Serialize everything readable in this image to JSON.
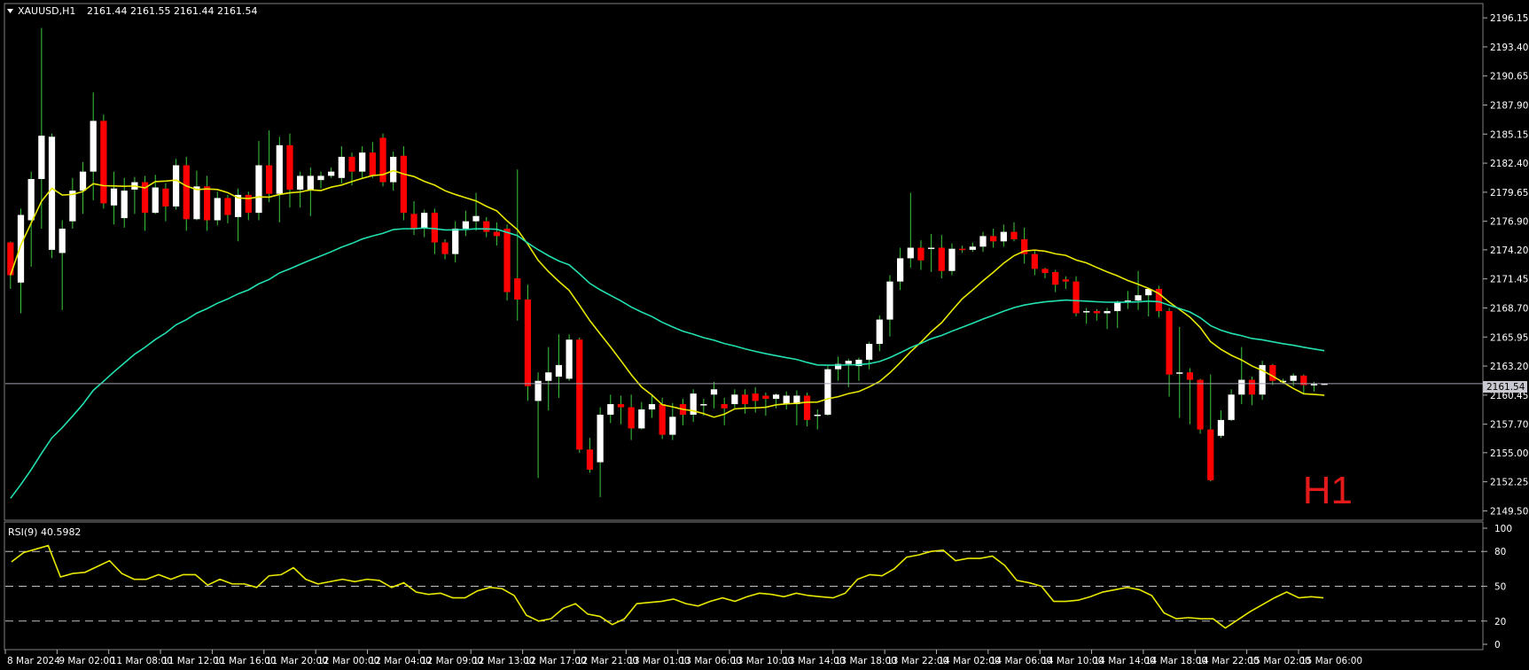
{
  "header": {
    "symbol_timeframe": "XAUUSD,H1",
    "ohlc_text": "2161.44 2161.55 2161.44 2161.54"
  },
  "watermark": "H1",
  "current_price_label": "2161.54",
  "rsi_label": "RSI(9) 40.5982",
  "colors": {
    "background": "#000000",
    "bull": "#ffffff",
    "bear": "#ff0000",
    "ma_fast": "#e8e800",
    "ma_slow": "#22e0b0",
    "rsi_line": "#e8e800",
    "price_line": "#a0a0b0"
  },
  "chart_data": [
    {
      "type": "candlestick",
      "title": "XAUUSD,H1",
      "y_ticks": [
        "2196.15",
        "2193.40",
        "2190.65",
        "2187.90",
        "2185.15",
        "2182.40",
        "2179.65",
        "2176.90",
        "2174.20",
        "2171.45",
        "2168.70",
        "2165.95",
        "2163.20",
        "2160.45",
        "2157.70",
        "2155.00",
        "2152.25",
        "2149.50"
      ],
      "ylim": [
        2149.2,
        2197.0
      ],
      "x_ticks": [
        "8 Mar 2024",
        "9 Mar 02:00",
        "11 Mar 08:00",
        "11 Mar 12:00",
        "11 Mar 16:00",
        "11 Mar 20:00",
        "12 Mar 00:00",
        "12 Mar 04:00",
        "12 Mar 09:00",
        "12 Mar 13:00",
        "12 Mar 17:00",
        "12 Mar 21:00",
        "13 Mar 01:00",
        "13 Mar 06:00",
        "13 Mar 10:00",
        "13 Mar 14:00",
        "13 Mar 18:00",
        "13 Mar 22:00",
        "14 Mar 02:00",
        "14 Mar 06:00",
        "14 Mar 10:00",
        "14 Mar 14:00",
        "14 Mar 18:00",
        "14 Mar 22:00",
        "15 Mar 02:00",
        "15 Mar 06:00"
      ],
      "x_tick_index": [
        0,
        5,
        10,
        15,
        20,
        25,
        30,
        35,
        40,
        45,
        50,
        55,
        60,
        65,
        70,
        75,
        80,
        85,
        90,
        95,
        100,
        105,
        110,
        115,
        120,
        125
      ],
      "last_price": 2161.54,
      "candles": [
        [
          2174.9,
          2171.8,
          2175.0,
          2170.5
        ],
        [
          2171.1,
          2177.5,
          2178.1,
          2168.2
        ],
        [
          2177.0,
          2180.9,
          2181.6,
          2172.6
        ],
        [
          2180.9,
          2185.0,
          2195.2,
          2176.2
        ],
        [
          2174.2,
          2184.9,
          2185.2,
          2173.4
        ],
        [
          2173.9,
          2176.2,
          2177.0,
          2168.5
        ],
        [
          2176.9,
          2179.8,
          2181.0,
          2176.2
        ],
        [
          2179.8,
          2181.6,
          2182.5,
          2177.6
        ],
        [
          2181.6,
          2186.4,
          2189.1,
          2178.9
        ],
        [
          2186.4,
          2178.6,
          2187.0,
          2178.1
        ],
        [
          2178.4,
          2180.0,
          2181.6,
          2176.6
        ],
        [
          2177.2,
          2179.8,
          2181.0,
          2176.3
        ],
        [
          2179.9,
          2180.6,
          2181.1,
          2177.6
        ],
        [
          2180.6,
          2177.7,
          2181.2,
          2176.0
        ],
        [
          2177.7,
          2180.1,
          2181.3,
          2177.6
        ],
        [
          2180.0,
          2178.3,
          2180.5,
          2176.9
        ],
        [
          2178.3,
          2182.2,
          2182.8,
          2178.0
        ],
        [
          2182.2,
          2177.1,
          2183.0,
          2176.0
        ],
        [
          2177.1,
          2180.2,
          2181.7,
          2177.0
        ],
        [
          2180.2,
          2177.0,
          2181.2,
          2176.0
        ],
        [
          2177.0,
          2179.1,
          2179.7,
          2176.5
        ],
        [
          2179.1,
          2177.5,
          2179.4,
          2176.7
        ],
        [
          2177.3,
          2179.4,
          2180.0,
          2175.0
        ],
        [
          2179.4,
          2177.7,
          2179.7,
          2177.0
        ],
        [
          2177.7,
          2182.2,
          2184.5,
          2177.0
        ],
        [
          2182.2,
          2179.5,
          2185.5,
          2178.7
        ],
        [
          2179.5,
          2184.1,
          2184.9,
          2176.8
        ],
        [
          2184.1,
          2179.9,
          2185.2,
          2178.2
        ],
        [
          2179.9,
          2181.2,
          2181.6,
          2178.2
        ],
        [
          2179.9,
          2181.2,
          2182.0,
          2177.4
        ],
        [
          2180.8,
          2181.2,
          2181.6,
          2180.0
        ],
        [
          2181.2,
          2181.6,
          2182.0,
          2181.0
        ],
        [
          2181.0,
          2183.0,
          2184.0,
          2180.5
        ],
        [
          2183.0,
          2181.6,
          2183.4,
          2180.3
        ],
        [
          2181.6,
          2183.4,
          2184.0,
          2181.0
        ],
        [
          2183.4,
          2181.2,
          2184.4,
          2181.0
        ],
        [
          2184.8,
          2180.6,
          2185.2,
          2180.2
        ],
        [
          2180.6,
          2183.0,
          2183.5,
          2179.8
        ],
        [
          2183.1,
          2177.7,
          2184.0,
          2177.0
        ],
        [
          2177.6,
          2176.2,
          2178.8,
          2175.6
        ],
        [
          2176.2,
          2177.7,
          2178.0,
          2175.4
        ],
        [
          2177.7,
          2174.9,
          2178.1,
          2173.8
        ],
        [
          2174.9,
          2173.8,
          2175.2,
          2173.3
        ],
        [
          2173.8,
          2176.2,
          2176.9,
          2173.0
        ],
        [
          2176.2,
          2176.9,
          2177.9,
          2175.5
        ],
        [
          2176.9,
          2177.4,
          2179.6,
          2176.0
        ],
        [
          2176.9,
          2175.9,
          2177.3,
          2175.4
        ],
        [
          2175.9,
          2175.5,
          2176.8,
          2174.6
        ],
        [
          2176.2,
          2170.2,
          2176.6,
          2169.4
        ],
        [
          2171.5,
          2169.5,
          2181.8,
          2167.5
        ],
        [
          2169.5,
          2161.3,
          2170.9,
          2159.9
        ],
        [
          2159.9,
          2161.8,
          2162.6,
          2152.6
        ],
        [
          2161.8,
          2162.6,
          2165.0,
          2159.0
        ],
        [
          2162.2,
          2163.3,
          2166.2,
          2160.2
        ],
        [
          2162.0,
          2165.7,
          2166.2,
          2161.8
        ],
        [
          2165.7,
          2155.3,
          2165.9,
          2155.0
        ],
        [
          2155.3,
          2153.4,
          2156.4,
          2153.1
        ],
        [
          2154.1,
          2158.6,
          2159.3,
          2150.8
        ],
        [
          2158.6,
          2159.6,
          2160.5,
          2157.8
        ],
        [
          2159.6,
          2159.3,
          2160.4,
          2157.7
        ],
        [
          2159.3,
          2157.3,
          2160.5,
          2156.2
        ],
        [
          2157.3,
          2159.1,
          2159.8,
          2157.2
        ],
        [
          2159.1,
          2159.6,
          2160.4,
          2158.3
        ],
        [
          2159.6,
          2156.7,
          2160.2,
          2156.3
        ],
        [
          2156.7,
          2158.4,
          2159.7,
          2156.2
        ],
        [
          2159.6,
          2158.6,
          2160.1,
          2157.6
        ],
        [
          2158.6,
          2160.6,
          2161.0,
          2157.9
        ],
        [
          2159.6,
          2159.6,
          2160.1,
          2158.5
        ],
        [
          2160.5,
          2161.0,
          2161.7,
          2159.2
        ],
        [
          2159.6,
          2159.2,
          2160.2,
          2157.6
        ],
        [
          2159.6,
          2160.5,
          2161.0,
          2159.2
        ],
        [
          2160.5,
          2159.6,
          2161.0,
          2158.7
        ],
        [
          2160.6,
          2159.9,
          2161.2,
          2158.8
        ],
        [
          2160.4,
          2160.1,
          2160.7,
          2158.5
        ],
        [
          2160.1,
          2160.5,
          2160.6,
          2159.2
        ],
        [
          2159.6,
          2160.4,
          2160.8,
          2159.1
        ],
        [
          2159.6,
          2160.4,
          2160.9,
          2157.6
        ],
        [
          2160.4,
          2158.1,
          2160.7,
          2157.5
        ],
        [
          2158.6,
          2158.6,
          2159.1,
          2157.2
        ],
        [
          2158.6,
          2162.9,
          2163.2,
          2158.5
        ],
        [
          2162.9,
          2163.4,
          2164.1,
          2161.8
        ],
        [
          2163.4,
          2163.7,
          2163.9,
          2161.2
        ],
        [
          2163.2,
          2163.8,
          2164.0,
          2161.8
        ],
        [
          2163.8,
          2165.3,
          2165.5,
          2162.9
        ],
        [
          2165.3,
          2167.6,
          2168.0,
          2164.6
        ],
        [
          2167.6,
          2171.2,
          2171.8,
          2166.0
        ],
        [
          2171.2,
          2173.4,
          2174.4,
          2170.4
        ],
        [
          2173.4,
          2174.4,
          2179.6,
          2172.5
        ],
        [
          2174.4,
          2173.2,
          2175.1,
          2172.3
        ],
        [
          2174.3,
          2174.4,
          2175.7,
          2172.1
        ],
        [
          2174.4,
          2172.2,
          2175.6,
          2171.5
        ],
        [
          2172.2,
          2174.3,
          2174.8,
          2171.8
        ],
        [
          2174.3,
          2174.2,
          2174.6,
          2173.9
        ],
        [
          2174.2,
          2174.5,
          2174.9,
          2174.0
        ],
        [
          2174.5,
          2175.5,
          2175.9,
          2174.0
        ],
        [
          2175.5,
          2175.0,
          2176.2,
          2174.4
        ],
        [
          2175.0,
          2175.9,
          2176.6,
          2174.5
        ],
        [
          2175.9,
          2175.2,
          2176.8,
          2175.0
        ],
        [
          2175.2,
          2173.8,
          2176.3,
          2172.9
        ],
        [
          2173.8,
          2172.4,
          2174.1,
          2171.8
        ],
        [
          2172.4,
          2172.0,
          2172.5,
          2171.5
        ],
        [
          2172.1,
          2170.9,
          2172.3,
          2170.2
        ],
        [
          2171.4,
          2171.2,
          2171.7,
          2170.5
        ],
        [
          2171.2,
          2168.2,
          2171.7,
          2167.9
        ],
        [
          2168.4,
          2168.4,
          2168.7,
          2167.2
        ],
        [
          2168.4,
          2168.2,
          2168.6,
          2167.5
        ],
        [
          2168.2,
          2168.4,
          2168.7,
          2166.7
        ],
        [
          2168.4,
          2169.2,
          2169.4,
          2166.8
        ],
        [
          2169.2,
          2169.4,
          2170.3,
          2168.6
        ],
        [
          2169.4,
          2169.9,
          2172.2,
          2168.5
        ],
        [
          2169.9,
          2170.5,
          2170.6,
          2167.9
        ],
        [
          2170.5,
          2168.4,
          2170.8,
          2167.8
        ],
        [
          2168.4,
          2162.4,
          2168.7,
          2160.3
        ],
        [
          2162.6,
          2162.6,
          2166.9,
          2158.3
        ],
        [
          2162.6,
          2161.9,
          2163.0,
          2157.7
        ],
        [
          2161.9,
          2157.2,
          2162.0,
          2156.8
        ],
        [
          2157.2,
          2152.4,
          2162.4,
          2152.3
        ],
        [
          2156.6,
          2158.1,
          2159.0,
          2156.4
        ],
        [
          2158.1,
          2160.5,
          2161.0,
          2158.0
        ],
        [
          2160.5,
          2161.9,
          2165.0,
          2159.6
        ],
        [
          2161.9,
          2160.5,
          2162.2,
          2159.5
        ],
        [
          2160.5,
          2163.3,
          2163.7,
          2160.0
        ],
        [
          2163.3,
          2161.8,
          2163.4,
          2161.4
        ],
        [
          2161.8,
          2161.8,
          2162.0,
          2161.6
        ],
        [
          2161.8,
          2162.3,
          2162.5,
          2161.3
        ],
        [
          2162.3,
          2161.4,
          2162.4,
          2160.6
        ],
        [
          2161.4,
          2161.5,
          2161.7,
          2160.8
        ],
        [
          2161.44,
          2161.54,
          2161.55,
          2161.44
        ]
      ]
    },
    {
      "type": "line",
      "title": "RSI(9) 40.5982",
      "y_ticks": [
        100,
        80,
        50,
        20,
        0
      ],
      "levels": [
        80,
        50,
        20
      ],
      "ylim": [
        0,
        100
      ],
      "values": [
        71,
        79,
        82,
        85,
        58,
        61,
        62,
        67,
        72,
        61,
        56,
        56,
        60,
        56,
        60,
        60,
        51,
        56,
        52,
        52,
        49,
        59,
        60,
        66,
        56,
        52,
        54,
        56,
        54,
        56,
        55,
        49,
        53,
        45,
        43,
        44,
        40,
        40,
        46,
        49,
        48,
        42,
        25,
        20,
        22,
        31,
        35,
        26,
        24,
        17,
        22,
        35,
        36,
        37,
        39,
        35,
        33,
        37,
        40,
        37,
        41,
        44,
        43,
        41,
        44,
        42,
        41,
        40,
        44,
        56,
        60,
        59,
        65,
        75,
        77,
        80,
        81,
        72,
        74,
        74,
        76,
        68,
        55,
        53,
        50,
        37,
        37,
        38,
        41,
        45,
        47,
        49,
        47,
        42,
        27,
        22,
        23,
        22,
        22,
        14,
        21,
        28,
        34,
        40,
        45,
        40,
        41,
        40
      ]
    }
  ]
}
